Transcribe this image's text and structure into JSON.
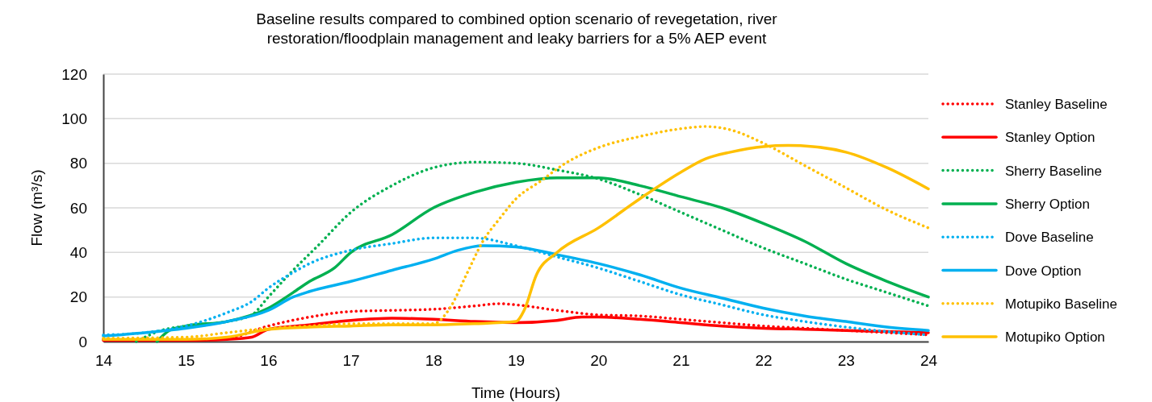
{
  "chart_data": {
    "type": "line",
    "title": "Baseline results compared to combined option scenario of revegetation, river restoration/floodplain management and leaky barriers for a 5% AEP event",
    "xlabel": "Time (Hours)",
    "ylabel": "Flow (m³/s)",
    "xlim": [
      14,
      24
    ],
    "xticks": [
      14,
      15,
      16,
      17,
      18,
      19,
      20,
      21,
      22,
      23,
      24
    ],
    "ylim": [
      0,
      120
    ],
    "yticks": [
      0,
      20,
      40,
      60,
      80,
      100,
      120
    ],
    "grid": "y",
    "legend": "right",
    "marker": "none",
    "series": [
      {
        "name": "Stanley Baseline",
        "color": "#ff0000",
        "line_style": "dotted",
        "x": [
          14,
          15,
          15.5,
          16,
          16.5,
          17,
          17.5,
          18,
          18.5,
          18.8,
          19,
          19.5,
          20,
          20.5,
          21,
          21.5,
          22,
          22.5,
          23,
          23.5,
          24
        ],
        "values": [
          1,
          1,
          1.5,
          7,
          11,
          13.5,
          14,
          14.5,
          16,
          17,
          16.5,
          14,
          12,
          11.5,
          10,
          8.5,
          7,
          6,
          5,
          4,
          3
        ]
      },
      {
        "name": "Stanley Option",
        "color": "#ff0000",
        "line_style": "solid",
        "x": [
          14,
          15,
          15.5,
          15.8,
          16,
          16.5,
          17,
          17.5,
          18,
          18.5,
          19,
          19.5,
          19.8,
          20,
          20.5,
          21,
          21.5,
          22,
          22.5,
          23,
          23.5,
          24
        ],
        "values": [
          0.5,
          0.5,
          1,
          2,
          5.5,
          7.5,
          9.5,
          10.5,
          10,
          9,
          8.5,
          9.5,
          11,
          11,
          10,
          8.5,
          7,
          6,
          5.5,
          5,
          4.5,
          4
        ]
      },
      {
        "name": "Sherry Baseline",
        "color": "#00b050",
        "line_style": "dotted",
        "x": [
          14.4,
          14.7,
          15,
          15.5,
          15.8,
          16,
          16.3,
          16.6,
          17,
          17.5,
          18,
          18.5,
          19,
          19.5,
          20,
          20.5,
          21,
          21.5,
          22,
          22.5,
          23,
          23.5,
          24
        ],
        "values": [
          0,
          5,
          7,
          9,
          12,
          20,
          32,
          43,
          58,
          70,
          78,
          80.5,
          80,
          77,
          73,
          66,
          58,
          50,
          42,
          35,
          28,
          22,
          16
        ]
      },
      {
        "name": "Sherry Option",
        "color": "#00b050",
        "line_style": "solid",
        "x": [
          14.65,
          14.8,
          15,
          15.5,
          16,
          16.3,
          16.5,
          16.8,
          17,
          17.5,
          18,
          18.5,
          19,
          19.5,
          20,
          20.5,
          21,
          21.5,
          22,
          22.5,
          23,
          23.5,
          24
        ],
        "values": [
          0,
          5,
          7,
          9,
          15,
          22,
          27,
          33,
          40,
          48,
          60,
          67,
          71.5,
          73.5,
          73.5,
          70,
          65,
          60,
          53,
          45,
          35,
          27,
          20
        ]
      },
      {
        "name": "Dove Baseline",
        "color": "#00b0f0",
        "line_style": "dotted",
        "x": [
          14,
          14.5,
          15,
          15.5,
          15.8,
          16,
          16.3,
          16.5,
          17,
          17.5,
          18,
          18.5,
          19,
          19.5,
          20,
          20.5,
          21,
          21.5,
          22,
          22.5,
          23,
          23.5,
          24
        ],
        "values": [
          3,
          4,
          7,
          13,
          18,
          24,
          31,
          35,
          41,
          44,
          46.5,
          46.5,
          43,
          38,
          33,
          27,
          21,
          16.5,
          12,
          9,
          6.5,
          4.5,
          3
        ]
      },
      {
        "name": "Dove Option",
        "color": "#00b0f0",
        "line_style": "solid",
        "x": [
          14,
          14.5,
          15,
          15.5,
          16,
          16.3,
          16.5,
          17,
          17.5,
          18,
          18.3,
          18.6,
          19,
          19.5,
          20,
          20.5,
          21,
          21.5,
          22,
          22.5,
          23,
          23.5,
          24
        ],
        "values": [
          2.5,
          4,
          6,
          9,
          14,
          20,
          22.5,
          27,
          32,
          37,
          41,
          43,
          42.5,
          39,
          35,
          30,
          24,
          19.5,
          15,
          11.5,
          9,
          6.5,
          5
        ]
      },
      {
        "name": "Motupiko Baseline",
        "color": "#ffc000",
        "line_style": "dotted",
        "x": [
          14,
          15,
          15.5,
          16,
          16.5,
          17,
          17.5,
          18,
          18.2,
          18.4,
          18.6,
          18.8,
          19,
          19.3,
          19.6,
          20,
          20.5,
          21,
          21.3,
          21.6,
          22,
          22.5,
          23,
          23.5,
          24
        ],
        "values": [
          1.5,
          2,
          4,
          6,
          7,
          8,
          8,
          8,
          15,
          30,
          45,
          55,
          64,
          72,
          80,
          87,
          92,
          95.5,
          96.5,
          95,
          89,
          79,
          69,
          59,
          51
        ]
      },
      {
        "name": "Motupiko Option",
        "color": "#ffc000",
        "line_style": "solid",
        "x": [
          14,
          15,
          15.5,
          16,
          16.5,
          17,
          17.5,
          18,
          18.5,
          19,
          19.1,
          19.25,
          19.5,
          20,
          20.5,
          21,
          21.3,
          21.6,
          22,
          22.3,
          22.6,
          23,
          23.5,
          24
        ],
        "values": [
          1,
          1,
          2,
          5.5,
          6.5,
          7,
          7.5,
          7.5,
          8,
          9,
          14,
          30,
          40,
          51,
          64,
          76,
          82,
          85,
          87.5,
          88,
          87.5,
          85,
          78,
          68.5
        ]
      }
    ]
  }
}
